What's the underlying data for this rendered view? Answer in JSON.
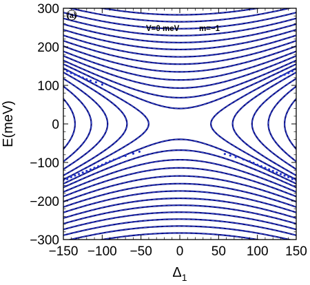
{
  "chart_data": {
    "type": "line",
    "panel_label": "(a)",
    "annotations": [
      "V=0 meV",
      "m=−1"
    ],
    "xlabel": "Δ",
    "xlabel_subscript": "1",
    "ylabel": "E(meV)",
    "xlim": [
      -150,
      150
    ],
    "ylim": [
      -300,
      300
    ],
    "x_ticks": [
      -150,
      -100,
      -50,
      0,
      50,
      100,
      150
    ],
    "x_tick_labels": [
      "−150",
      "−100",
      "−50",
      "0",
      "50",
      "100",
      "150"
    ],
    "y_ticks": [
      -300,
      -200,
      -100,
      0,
      100,
      200,
      300
    ],
    "y_tick_labels": [
      "−300",
      "−200",
      "−100",
      "0",
      "100",
      "200",
      "300"
    ],
    "grid": false,
    "legend": "none",
    "colors": {
      "curve": "#0d0d80",
      "dashed_overlay": "#3355dd",
      "scatter": "#2233cc",
      "frame": "#000000"
    },
    "series": [
      {
        "style": "solid",
        "values_vertex_E": [
          40,
          68,
          93,
          114,
          135,
          155,
          174,
          193,
          211,
          229,
          247,
          265,
          283,
          301
        ]
      },
      {
        "style": "solid",
        "values_vertex_E": [
          -40,
          -68,
          -93,
          -114,
          -135,
          -155,
          -174,
          -193,
          -211,
          -229,
          -247,
          -265,
          -283,
          -301
        ]
      },
      {
        "style": "solid",
        "horizontal_vertex_delta": [
          40,
          68,
          93,
          114,
          135
        ]
      },
      {
        "style": "solid",
        "horizontal_vertex_delta": [
          -40,
          -68,
          -93,
          -114,
          -135
        ]
      }
    ],
    "scatter_points": [
      [
        -145,
        137
      ],
      [
        -140,
        132
      ],
      [
        -135,
        128
      ],
      [
        -130,
        124
      ],
      [
        -125,
        120
      ],
      [
        -120,
        116
      ],
      [
        -115,
        112
      ],
      [
        -108,
        108
      ],
      [
        -100,
        102
      ],
      [
        145,
        137
      ],
      [
        140,
        132
      ],
      [
        135,
        128
      ],
      [
        130,
        124
      ],
      [
        -150,
        -147
      ],
      [
        -145,
        -143
      ],
      [
        -140,
        -138
      ],
      [
        -135,
        -134
      ],
      [
        -130,
        -130
      ],
      [
        -125,
        -126
      ],
      [
        -120,
        -122
      ],
      [
        -115,
        -118
      ],
      [
        -110,
        -114
      ],
      [
        -105,
        -110
      ],
      [
        -100,
        -106
      ],
      [
        -95,
        -101
      ],
      [
        -90,
        -97
      ],
      [
        -85,
        -93
      ],
      [
        -78,
        -88
      ],
      [
        -70,
        -83
      ],
      [
        -60,
        -77
      ],
      [
        -52,
        -72
      ],
      [
        150,
        -147
      ],
      [
        145,
        -143
      ],
      [
        140,
        -138
      ],
      [
        135,
        -134
      ],
      [
        130,
        -130
      ],
      [
        125,
        -126
      ],
      [
        120,
        -122
      ],
      [
        115,
        -118
      ],
      [
        110,
        -114
      ],
      [
        105,
        -110
      ],
      [
        100,
        -106
      ],
      [
        95,
        -101
      ],
      [
        90,
        -97
      ],
      [
        82,
        -92
      ],
      [
        72,
        -86
      ],
      [
        65,
        -82
      ],
      [
        58,
        -78
      ]
    ]
  }
}
